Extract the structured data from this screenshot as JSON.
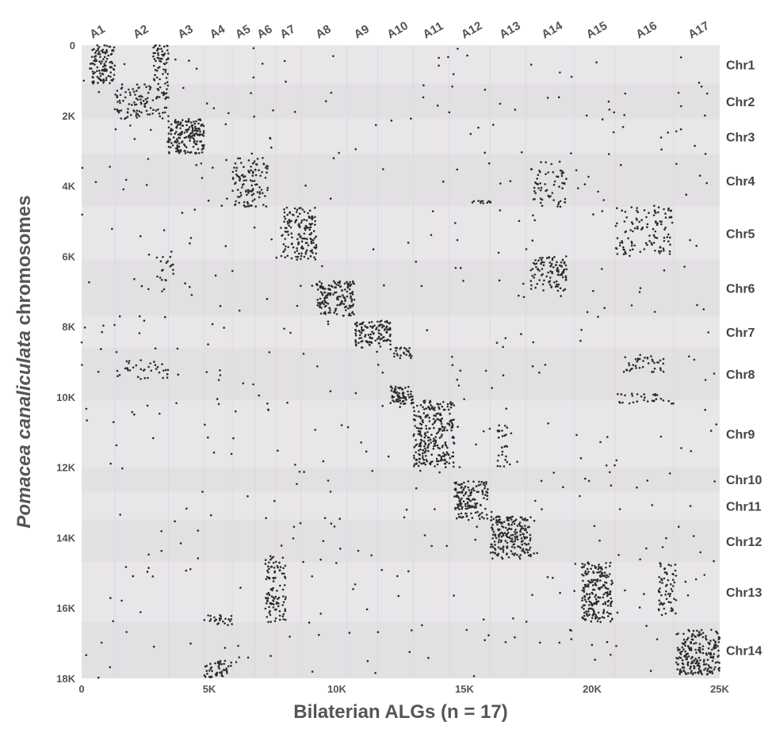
{
  "chart_data": {
    "type": "scatter",
    "xlabel": "Bilaterian ALGs (n = 17)",
    "ylabel_italic": "Pomacea canaliculata",
    "ylabel_rest": " chromosomes",
    "xlim": [
      0,
      25000
    ],
    "ylim": [
      0,
      18000
    ],
    "x_ticks": [
      {
        "value": 0,
        "label": "0"
      },
      {
        "value": 5000,
        "label": "5K"
      },
      {
        "value": 10000,
        "label": "10K"
      },
      {
        "value": 15000,
        "label": "15K"
      },
      {
        "value": 20000,
        "label": "20K"
      },
      {
        "value": 25000,
        "label": "25K"
      }
    ],
    "y_ticks": [
      {
        "value": 0,
        "label": "0"
      },
      {
        "value": 2000,
        "label": "2K"
      },
      {
        "value": 4000,
        "label": "4K"
      },
      {
        "value": 6000,
        "label": "6K"
      },
      {
        "value": 8000,
        "label": "8K"
      },
      {
        "value": 10000,
        "label": "10K"
      },
      {
        "value": 12000,
        "label": "12K"
      },
      {
        "value": 14000,
        "label": "14K"
      },
      {
        "value": 16000,
        "label": "16K"
      },
      {
        "value": 18000,
        "label": "18K"
      }
    ],
    "algs": [
      {
        "name": "A1",
        "start": 0,
        "end": 1300
      },
      {
        "name": "A2",
        "start": 1300,
        "end": 3400
      },
      {
        "name": "A3",
        "start": 3400,
        "end": 4800
      },
      {
        "name": "A4",
        "start": 4800,
        "end": 5900
      },
      {
        "name": "A5",
        "start": 5900,
        "end": 6800
      },
      {
        "name": "A6",
        "start": 6800,
        "end": 7600
      },
      {
        "name": "A7",
        "start": 7600,
        "end": 8600
      },
      {
        "name": "A8",
        "start": 8600,
        "end": 10400
      },
      {
        "name": "A9",
        "start": 10400,
        "end": 11600
      },
      {
        "name": "A10",
        "start": 11600,
        "end": 13000
      },
      {
        "name": "A11",
        "start": 13000,
        "end": 14400
      },
      {
        "name": "A12",
        "start": 14400,
        "end": 16000
      },
      {
        "name": "A13",
        "start": 16000,
        "end": 17400
      },
      {
        "name": "A14",
        "start": 17400,
        "end": 19300
      },
      {
        "name": "A15",
        "start": 19300,
        "end": 20900
      },
      {
        "name": "A16",
        "start": 20900,
        "end": 23200
      },
      {
        "name": "A17",
        "start": 23200,
        "end": 25000
      }
    ],
    "chromosomes": [
      {
        "name": "Chr1",
        "start": 0,
        "end": 1100
      },
      {
        "name": "Chr2",
        "start": 1100,
        "end": 2100
      },
      {
        "name": "Chr3",
        "start": 2100,
        "end": 3100
      },
      {
        "name": "Chr4",
        "start": 3100,
        "end": 4600
      },
      {
        "name": "Chr5",
        "start": 4600,
        "end": 6100
      },
      {
        "name": "Chr6",
        "start": 6100,
        "end": 7700
      },
      {
        "name": "Chr7",
        "start": 7700,
        "end": 8600
      },
      {
        "name": "Chr8",
        "start": 8600,
        "end": 10100
      },
      {
        "name": "Chr9",
        "start": 10100,
        "end": 12000
      },
      {
        "name": "Chr10",
        "start": 12000,
        "end": 12700
      },
      {
        "name": "Chr11",
        "start": 12700,
        "end": 13500
      },
      {
        "name": "Chr12",
        "start": 13500,
        "end": 14700
      },
      {
        "name": "Chr13",
        "start": 14700,
        "end": 16400
      },
      {
        "name": "Chr14",
        "start": 16400,
        "end": 18000
      }
    ],
    "clusters": [
      {
        "x": [
          300,
          1300
        ],
        "y": [
          0,
          1100
        ],
        "n": 110
      },
      {
        "x": [
          2800,
          3400
        ],
        "y": [
          0,
          1100
        ],
        "n": 55
      },
      {
        "x": [
          1300,
          3400
        ],
        "y": [
          1100,
          2100
        ],
        "n": 110
      },
      {
        "x": [
          3400,
          4800
        ],
        "y": [
          2100,
          3100
        ],
        "n": 170
      },
      {
        "x": [
          5900,
          7300
        ],
        "y": [
          3200,
          4600
        ],
        "n": 110
      },
      {
        "x": [
          7800,
          9200
        ],
        "y": [
          4600,
          6100
        ],
        "n": 150
      },
      {
        "x": [
          9200,
          10700
        ],
        "y": [
          6700,
          7700
        ],
        "n": 150
      },
      {
        "x": [
          10700,
          12100
        ],
        "y": [
          7800,
          8600
        ],
        "n": 120
      },
      {
        "x": [
          12100,
          13000
        ],
        "y": [
          8600,
          8900
        ],
        "n": 25
      },
      {
        "x": [
          12100,
          13000
        ],
        "y": [
          9700,
          10200
        ],
        "n": 70
      },
      {
        "x": [
          13000,
          14600
        ],
        "y": [
          10100,
          12000
        ],
        "n": 260
      },
      {
        "x": [
          14600,
          15900
        ],
        "y": [
          12400,
          13500
        ],
        "n": 140
      },
      {
        "x": [
          16000,
          17600
        ],
        "y": [
          13400,
          14600
        ],
        "n": 200
      },
      {
        "x": [
          17600,
          19000
        ],
        "y": [
          6000,
          7000
        ],
        "n": 100
      },
      {
        "x": [
          17600,
          19000
        ],
        "y": [
          3300,
          4600
        ],
        "n": 60
      },
      {
        "x": [
          20900,
          23200
        ],
        "y": [
          4600,
          6000
        ],
        "n": 110
      },
      {
        "x": [
          19600,
          20800
        ],
        "y": [
          14700,
          16400
        ],
        "n": 200
      },
      {
        "x": [
          22600,
          23300
        ],
        "y": [
          14700,
          16200
        ],
        "n": 60
      },
      {
        "x": [
          23300,
          25000
        ],
        "y": [
          16600,
          17900
        ],
        "n": 220
      },
      {
        "x": [
          7200,
          8000
        ],
        "y": [
          14500,
          16400
        ],
        "n": 100
      },
      {
        "x": [
          21200,
          22800
        ],
        "y": [
          8800,
          9300
        ],
        "n": 40
      },
      {
        "x": [
          1300,
          3400
        ],
        "y": [
          8900,
          9500
        ],
        "n": 35
      },
      {
        "x": [
          4800,
          5900
        ],
        "y": [
          17500,
          18000
        ],
        "n": 45
      },
      {
        "x": [
          4800,
          5900
        ],
        "y": [
          16200,
          16500
        ],
        "n": 25
      },
      {
        "x": [
          21000,
          23200
        ],
        "y": [
          9900,
          10200
        ],
        "n": 30
      },
      {
        "x": [
          15300,
          16100
        ],
        "y": [
          4400,
          4500
        ],
        "n": 12
      },
      {
        "x": [
          16300,
          16700
        ],
        "y": [
          10700,
          12000
        ],
        "n": 25
      },
      {
        "x": [
          2800,
          3600
        ],
        "y": [
          6000,
          7000
        ],
        "n": 20
      },
      {
        "x": [
          0,
          25000
        ],
        "y": [
          0,
          18000
        ],
        "n": 520
      }
    ]
  }
}
